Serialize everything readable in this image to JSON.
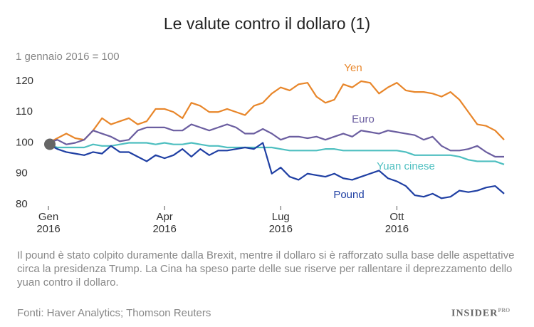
{
  "chart_data": {
    "type": "line",
    "title": "Le valute contro il dollaro (1)",
    "subtitle": "1 gennaio 2016 = 100",
    "note": "Il pound è stato colpito duramente dalla Brexit, mentre il dollaro si è rafforzato sulla base delle aspettative circa la presidenza Trump. La Cina ha speso parte delle sue riserve per rallentare il deprezzamento dello yuan contro il dollaro.",
    "source": "Fonti:  Haver Analytics; Thomson Reuters",
    "brand": "INSIDER",
    "brand_suffix": "PRO",
    "x": [
      0,
      1,
      2,
      3,
      4,
      5,
      6,
      7,
      8,
      9,
      10,
      11,
      12,
      13,
      14,
      15,
      16,
      17,
      18,
      19,
      20,
      21,
      22,
      23,
      24,
      25,
      26,
      27,
      28,
      29,
      30,
      31,
      32,
      33,
      34,
      35,
      36,
      37,
      38,
      39,
      40,
      41,
      42,
      43,
      44,
      45,
      46,
      47,
      48,
      49,
      50,
      51
    ],
    "xlim": [
      0,
      51
    ],
    "xticks": [
      {
        "value": 0,
        "label": "Gen\n2016"
      },
      {
        "value": 13,
        "label": "Apr\n2016"
      },
      {
        "value": 26,
        "label": "Lug\n2016"
      },
      {
        "value": 39,
        "label": "Ott\n2016"
      }
    ],
    "ylim": [
      80,
      120
    ],
    "yticks": [
      80,
      90,
      100,
      110,
      120
    ],
    "grid": false,
    "series": [
      {
        "name": "Yen",
        "color": "#e8862a",
        "values": [
          100,
          101.5,
          103,
          101.5,
          101,
          104,
          108,
          106,
          107,
          108,
          106,
          107,
          111,
          111,
          110,
          108,
          113,
          112,
          110,
          110,
          111,
          110,
          109,
          112,
          113,
          116,
          118,
          117,
          119,
          119.5,
          115,
          113,
          114,
          119,
          118,
          120,
          119.5,
          116,
          118,
          119.5,
          117,
          116.5,
          116.5,
          116,
          115,
          116.5,
          114,
          110,
          106,
          105.5,
          104,
          101
        ]
      },
      {
        "name": "Euro",
        "color": "#6b5ea0",
        "values": [
          100,
          101,
          99.5,
          100,
          101,
          104,
          103,
          102,
          100.5,
          101,
          104,
          105,
          105,
          105,
          104,
          104,
          106,
          105,
          104,
          105,
          106,
          105,
          103,
          103,
          104.5,
          103,
          101,
          102,
          102,
          101.5,
          102,
          101,
          102,
          103,
          102,
          104,
          103.5,
          103,
          104,
          103.5,
          103,
          102.5,
          101,
          102,
          99,
          97.5,
          97.5,
          98,
          99,
          97,
          95.5,
          95.5
        ]
      },
      {
        "name": "Yuan cinese",
        "color": "#4ebfc0",
        "values": [
          99.5,
          98.5,
          98.5,
          98.5,
          98.5,
          99.5,
          99,
          99,
          99.5,
          100,
          100,
          100,
          99.5,
          100,
          99.5,
          99.5,
          100,
          99.5,
          99,
          99,
          98.5,
          98.5,
          98.5,
          98.5,
          98.5,
          98.5,
          98,
          97.5,
          97.5,
          97.5,
          97.5,
          98,
          98,
          97.5,
          97.5,
          97.5,
          97.5,
          97.5,
          97.5,
          97.5,
          97,
          96,
          96,
          96,
          96,
          96,
          95.5,
          94.5,
          94,
          94,
          94,
          93
        ]
      },
      {
        "name": "Pound",
        "color": "#1f3fa3",
        "values": [
          99.5,
          98,
          97,
          96.5,
          96,
          97,
          96.5,
          99,
          97,
          97,
          95.5,
          94,
          96,
          95,
          96,
          98,
          95.5,
          98,
          96,
          97.5,
          97.5,
          98,
          98.5,
          98,
          100,
          90,
          92,
          89,
          88,
          90,
          89.5,
          89,
          90,
          88.5,
          88,
          89,
          90,
          91,
          88.5,
          87.5,
          86,
          83,
          82.5,
          83.5,
          82,
          82.5,
          84.5,
          84,
          84.5,
          85.5,
          86,
          83.5
        ]
      }
    ]
  }
}
